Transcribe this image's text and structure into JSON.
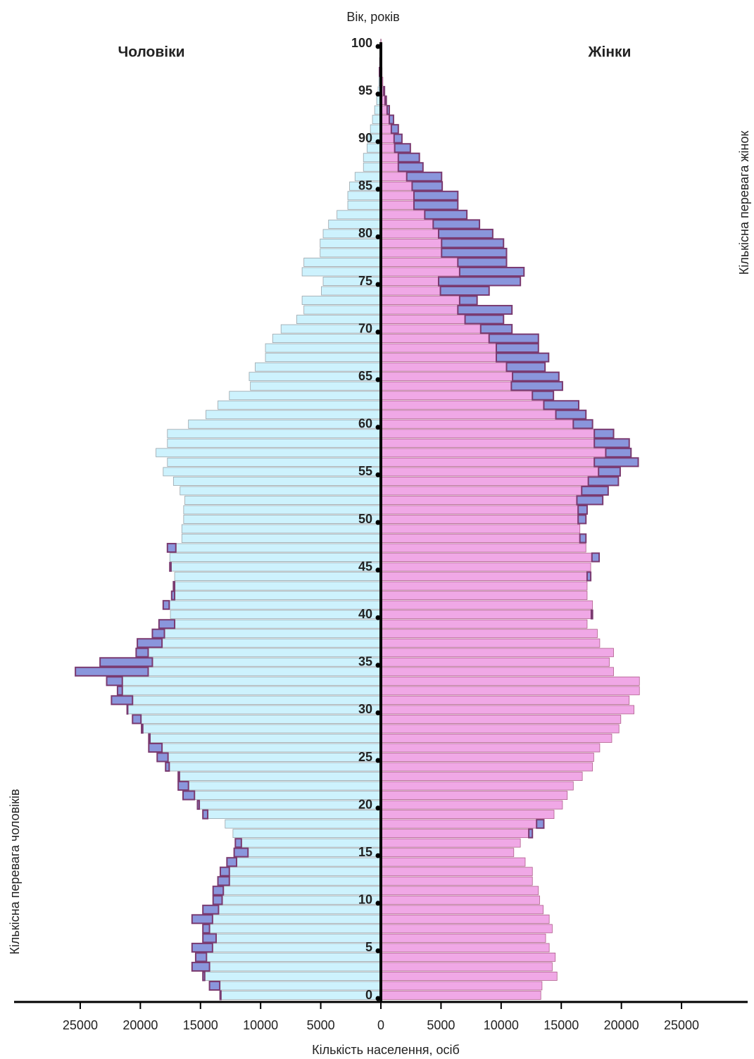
{
  "chart_data": {
    "type": "population-pyramid",
    "title": "Вік, років",
    "x_label": "Кількість населення, осіб",
    "annotations": [
      "Кількісна перевага жінок",
      "Кількісна перевага чоловіків"
    ],
    "excess_color": "#8a96dc",
    "ages": [
      0,
      1,
      2,
      3,
      4,
      5,
      6,
      7,
      8,
      9,
      10,
      11,
      12,
      13,
      14,
      15,
      16,
      17,
      18,
      19,
      20,
      21,
      22,
      23,
      24,
      25,
      26,
      27,
      28,
      29,
      30,
      31,
      32,
      33,
      34,
      35,
      36,
      37,
      38,
      39,
      40,
      41,
      42,
      43,
      44,
      45,
      46,
      47,
      48,
      49,
      50,
      51,
      52,
      53,
      54,
      55,
      56,
      57,
      58,
      59,
      60,
      61,
      62,
      63,
      64,
      65,
      66,
      67,
      68,
      69,
      70,
      71,
      72,
      73,
      74,
      75,
      76,
      77,
      78,
      79,
      80,
      81,
      82,
      83,
      84,
      85,
      86,
      87,
      88,
      89,
      90,
      91,
      92,
      93,
      94,
      95,
      96,
      97,
      98,
      99,
      100
    ],
    "ylim": [
      0,
      100
    ],
    "yticks": [
      0,
      5,
      10,
      15,
      20,
      25,
      30,
      35,
      40,
      45,
      50,
      55,
      60,
      65,
      70,
      75,
      80,
      85,
      90,
      95,
      100
    ],
    "xlim": [
      -30500,
      30500
    ],
    "xticks": [
      {
        "value": -25000,
        "label": "25000"
      },
      {
        "value": -20000,
        "label": "20000"
      },
      {
        "value": -15000,
        "label": "15000"
      },
      {
        "value": -10000,
        "label": "10000"
      },
      {
        "value": -5000,
        "label": "5000"
      },
      0,
      5000,
      10000,
      15000,
      20000,
      25000
    ],
    "series": [
      {
        "name": "Чоловіки",
        "color": "#cdf2fd",
        "values": [
          13370,
          14250,
          14800,
          15700,
          15400,
          15700,
          14800,
          14800,
          15700,
          14800,
          13950,
          13950,
          13550,
          13350,
          12800,
          12200,
          12100,
          12300,
          12950,
          14800,
          15250,
          16450,
          16850,
          16850,
          17900,
          18600,
          19300,
          19300,
          19900,
          20650,
          21100,
          22400,
          21900,
          22800,
          25400,
          23350,
          20350,
          20250,
          19000,
          18450,
          17500,
          18100,
          17400,
          17250,
          17150,
          17550,
          17550,
          17750,
          16550,
          16550,
          16400,
          16400,
          16300,
          16700,
          17250,
          18100,
          17750,
          18700,
          17750,
          17750,
          16000,
          14550,
          13550,
          12600,
          10850,
          10950,
          10450,
          9600,
          9600,
          9000,
          8300,
          7000,
          6400,
          6550,
          4950,
          4800,
          6550,
          6400,
          5050,
          5050,
          4800,
          4350,
          3650,
          2750,
          2750,
          2600,
          2150,
          1450,
          1450,
          1150,
          1100,
          870,
          700,
          520,
          350,
          230,
          170,
          120,
          70,
          40,
          20
        ]
      },
      {
        "name": "Жінки",
        "color": "#f0a8e6",
        "values": [
          13300,
          13400,
          14650,
          14250,
          14500,
          14000,
          13700,
          14250,
          14000,
          13500,
          13200,
          13100,
          12600,
          12600,
          12000,
          11050,
          11600,
          12600,
          13550,
          14400,
          15100,
          15500,
          16000,
          16750,
          17600,
          17700,
          18200,
          19200,
          19800,
          19950,
          21050,
          20650,
          21500,
          21500,
          19350,
          19000,
          19350,
          18200,
          18000,
          17150,
          17600,
          17600,
          17150,
          17150,
          17450,
          17450,
          18150,
          17050,
          17050,
          16550,
          17050,
          17150,
          18450,
          18900,
          19750,
          19900,
          21400,
          20800,
          20650,
          19350,
          17600,
          17050,
          16450,
          14350,
          15100,
          14800,
          13650,
          13950,
          13100,
          13100,
          10900,
          10200,
          10900,
          8000,
          9000,
          11600,
          11900,
          10450,
          10450,
          10200,
          9300,
          8200,
          7150,
          6400,
          6400,
          5100,
          5050,
          3500,
          3200,
          2450,
          1750,
          1450,
          1050,
          700,
          450,
          300,
          170,
          100,
          60,
          30,
          20
        ]
      }
    ]
  }
}
